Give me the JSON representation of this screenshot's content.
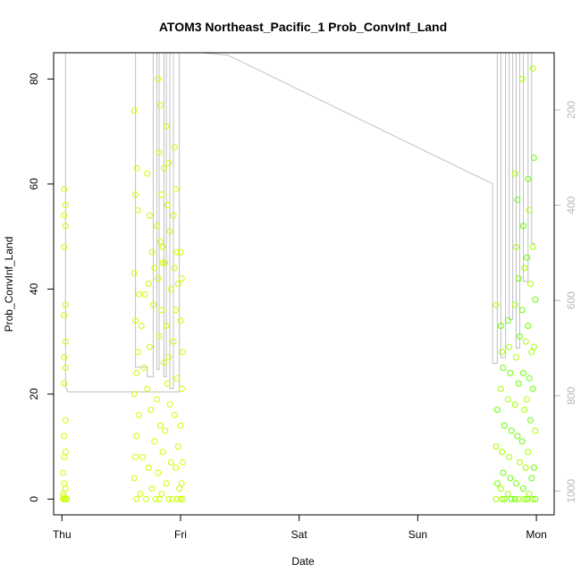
{
  "chart_data": {
    "type": "scatter",
    "title": "ATOM3 Northeast_Pacific_1 Prob_ConvInf_Land",
    "xlabel": "Date",
    "ylabel": "Prob_ConvInf_Land",
    "x_ticks": [
      "Thu",
      "Fri",
      "Sat",
      "Sun",
      "Mon"
    ],
    "y_ticks": [
      0,
      20,
      40,
      60,
      80
    ],
    "y2_ticks": [
      200,
      400,
      600,
      800,
      1000
    ],
    "xlim": [
      -0.07,
      4.15
    ],
    "ylim": [
      -3,
      85
    ],
    "y2lim": [
      1050,
      80
    ],
    "point_colors": {
      "yellow": "#ccff00",
      "yellow_green": "#a8ff00",
      "green": "#66ff00"
    },
    "line_color": "#c0c0c0",
    "point_clusters": [
      {
        "x_range": [
          -0.01,
          0.06
        ],
        "colors": [
          "yellow"
        ],
        "points": [
          [
            0.02,
            59
          ],
          [
            0.03,
            56
          ],
          [
            0.02,
            54
          ],
          [
            0.03,
            52
          ],
          [
            0.02,
            48
          ],
          [
            0.03,
            37
          ],
          [
            0.02,
            35
          ],
          [
            0.03,
            30
          ],
          [
            0.02,
            27
          ],
          [
            0.03,
            25
          ],
          [
            0.02,
            22
          ],
          [
            0.03,
            15
          ],
          [
            0.02,
            12
          ],
          [
            0.03,
            9
          ],
          [
            0.02,
            8
          ],
          [
            0.01,
            5
          ],
          [
            0.02,
            3
          ],
          [
            0.03,
            2
          ],
          [
            0.01,
            1
          ],
          [
            0.02,
            0.5
          ],
          [
            0.03,
            0
          ],
          [
            0.02,
            0
          ],
          [
            0.04,
            0
          ],
          [
            0.01,
            0
          ]
        ]
      },
      {
        "x_range": [
          0.6,
          1.04
        ],
        "colors": [
          "yellow"
        ],
        "points": [
          [
            0.61,
            74
          ],
          [
            0.63,
            63
          ],
          [
            0.62,
            58
          ],
          [
            0.64,
            55
          ],
          [
            0.61,
            43
          ],
          [
            0.65,
            39
          ],
          [
            0.62,
            34
          ],
          [
            0.64,
            28
          ],
          [
            0.63,
            24
          ],
          [
            0.61,
            20
          ],
          [
            0.65,
            16
          ],
          [
            0.63,
            12
          ],
          [
            0.62,
            8
          ],
          [
            0.61,
            4
          ],
          [
            0.63,
            0
          ],
          [
            0.72,
            62
          ],
          [
            0.74,
            54
          ],
          [
            0.76,
            47
          ],
          [
            0.73,
            41
          ],
          [
            0.77,
            37
          ],
          [
            0.74,
            29
          ],
          [
            0.72,
            21
          ],
          [
            0.75,
            17
          ],
          [
            0.78,
            11
          ],
          [
            0.73,
            6
          ],
          [
            0.76,
            2
          ],
          [
            0.79,
            0
          ],
          [
            0.71,
            0
          ],
          [
            0.81,
            80
          ],
          [
            0.83,
            75
          ],
          [
            0.82,
            66
          ],
          [
            0.84,
            58
          ],
          [
            0.8,
            52
          ],
          [
            0.83,
            49
          ],
          [
            0.85,
            45
          ],
          [
            0.81,
            42
          ],
          [
            0.84,
            36
          ],
          [
            0.82,
            31
          ],
          [
            0.86,
            26
          ],
          [
            0.8,
            19
          ],
          [
            0.83,
            14
          ],
          [
            0.85,
            9
          ],
          [
            0.81,
            5
          ],
          [
            0.84,
            1
          ],
          [
            0.82,
            0
          ],
          [
            0.88,
            71
          ],
          [
            0.9,
            64
          ],
          [
            0.89,
            56
          ],
          [
            0.91,
            51
          ],
          [
            0.87,
            45
          ],
          [
            0.92,
            40
          ],
          [
            0.88,
            33
          ],
          [
            0.9,
            27
          ],
          [
            0.89,
            22
          ],
          [
            0.91,
            18
          ],
          [
            0.87,
            13
          ],
          [
            0.92,
            7
          ],
          [
            0.88,
            3
          ],
          [
            0.9,
            0
          ],
          [
            0.93,
            0
          ],
          [
            0.95,
            67
          ],
          [
            0.96,
            59
          ],
          [
            0.94,
            54
          ],
          [
            0.97,
            47
          ],
          [
            0.95,
            44
          ],
          [
            0.98,
            41
          ],
          [
            0.96,
            36
          ],
          [
            0.94,
            30
          ],
          [
            0.97,
            23
          ],
          [
            0.95,
            16
          ],
          [
            0.98,
            10
          ],
          [
            0.96,
            6
          ],
          [
            0.99,
            2
          ],
          [
            0.97,
            0
          ],
          [
            1.0,
            47
          ],
          [
            1.01,
            42
          ],
          [
            1.0,
            34
          ],
          [
            1.02,
            28
          ],
          [
            1.01,
            21
          ],
          [
            1.0,
            14
          ],
          [
            1.02,
            7
          ],
          [
            1.01,
            3
          ],
          [
            1.0,
            0
          ],
          [
            1.02,
            0
          ],
          [
            0.86,
            63
          ],
          [
            0.85,
            48
          ],
          [
            0.78,
            44
          ],
          [
            0.7,
            39
          ],
          [
            0.67,
            33
          ],
          [
            0.69,
            25
          ],
          [
            0.68,
            8
          ],
          [
            0.66,
            1
          ]
        ]
      },
      {
        "x_range": [
          3.65,
          4.01
        ],
        "colors": [
          "yellow_green",
          "green"
        ],
        "points": [
          [
            3.66,
            37
          ],
          [
            3.67,
            17
          ],
          [
            3.66,
            10
          ],
          [
            3.67,
            3
          ],
          [
            3.66,
            0
          ],
          [
            3.7,
            33
          ],
          [
            3.71,
            28
          ],
          [
            3.72,
            25
          ],
          [
            3.7,
            21
          ],
          [
            3.73,
            14
          ],
          [
            3.71,
            9
          ],
          [
            3.72,
            5
          ],
          [
            3.7,
            2
          ],
          [
            3.73,
            0
          ],
          [
            3.71,
            0
          ],
          [
            3.76,
            34
          ],
          [
            3.77,
            29
          ],
          [
            3.78,
            24
          ],
          [
            3.76,
            19
          ],
          [
            3.79,
            13
          ],
          [
            3.77,
            8
          ],
          [
            3.78,
            4
          ],
          [
            3.76,
            1
          ],
          [
            3.79,
            0
          ],
          [
            3.82,
            62
          ],
          [
            3.84,
            57
          ],
          [
            3.83,
            48
          ],
          [
            3.85,
            42
          ],
          [
            3.82,
            37
          ],
          [
            3.86,
            31
          ],
          [
            3.83,
            27
          ],
          [
            3.85,
            22
          ],
          [
            3.82,
            18
          ],
          [
            3.84,
            12
          ],
          [
            3.86,
            7
          ],
          [
            3.83,
            3
          ],
          [
            3.85,
            0
          ],
          [
            3.82,
            0
          ],
          [
            3.88,
            80
          ],
          [
            3.89,
            52
          ],
          [
            3.9,
            44
          ],
          [
            3.88,
            36
          ],
          [
            3.91,
            30
          ],
          [
            3.89,
            24
          ],
          [
            3.9,
            17
          ],
          [
            3.88,
            11
          ],
          [
            3.91,
            6
          ],
          [
            3.89,
            2
          ],
          [
            3.9,
            0
          ],
          [
            3.93,
            61
          ],
          [
            3.94,
            55
          ],
          [
            3.92,
            46
          ],
          [
            3.95,
            41
          ],
          [
            3.93,
            33
          ],
          [
            3.96,
            28
          ],
          [
            3.94,
            23
          ],
          [
            3.92,
            19
          ],
          [
            3.95,
            15
          ],
          [
            3.93,
            9
          ],
          [
            3.96,
            4
          ],
          [
            3.94,
            1
          ],
          [
            3.92,
            0
          ],
          [
            3.97,
            82
          ],
          [
            3.98,
            65
          ],
          [
            3.97,
            48
          ],
          [
            3.99,
            38
          ],
          [
            3.98,
            29
          ],
          [
            3.97,
            21
          ],
          [
            3.99,
            13
          ],
          [
            3.98,
            6
          ],
          [
            3.97,
            0
          ],
          [
            3.99,
            0
          ]
        ]
      }
    ],
    "line_series": {
      "name": "",
      "axis": "right",
      "points": [
        [
          0.03,
          80
        ],
        [
          0.03,
          780
        ],
        [
          0.05,
          792
        ],
        [
          0.99,
          792
        ],
        [
          0.99,
          80
        ],
        [
          0.94,
          80
        ],
        [
          0.94,
          785
        ],
        [
          0.91,
          785
        ],
        [
          0.91,
          80
        ],
        [
          0.88,
          80
        ],
        [
          0.88,
          760
        ],
        [
          0.86,
          760
        ],
        [
          0.86,
          80
        ],
        [
          0.82,
          80
        ],
        [
          0.82,
          745
        ],
        [
          0.8,
          745
        ],
        [
          0.8,
          80
        ],
        [
          0.77,
          80
        ],
        [
          0.77,
          760
        ],
        [
          0.72,
          760
        ],
        [
          0.72,
          740
        ],
        [
          0.62,
          740
        ],
        [
          0.62,
          80
        ],
        [
          0.9,
          80
        ],
        [
          1.18,
          80
        ],
        [
          1.4,
          85
        ],
        [
          3.63,
          355
        ],
        [
          3.63,
          732
        ],
        [
          3.67,
          732
        ],
        [
          3.67,
          80
        ],
        [
          3.7,
          80
        ],
        [
          3.7,
          720
        ],
        [
          3.74,
          720
        ],
        [
          3.74,
          80
        ],
        [
          3.77,
          80
        ],
        [
          3.77,
          640
        ],
        [
          3.8,
          640
        ],
        [
          3.8,
          80
        ],
        [
          3.83,
          80
        ],
        [
          3.83,
          700
        ],
        [
          3.86,
          700
        ],
        [
          3.86,
          80
        ],
        [
          3.89,
          80
        ],
        [
          3.89,
          560
        ],
        [
          3.93,
          560
        ],
        [
          3.93,
          80
        ],
        [
          3.96,
          80
        ],
        [
          3.96,
          480
        ],
        [
          3.99,
          480
        ]
      ]
    }
  }
}
